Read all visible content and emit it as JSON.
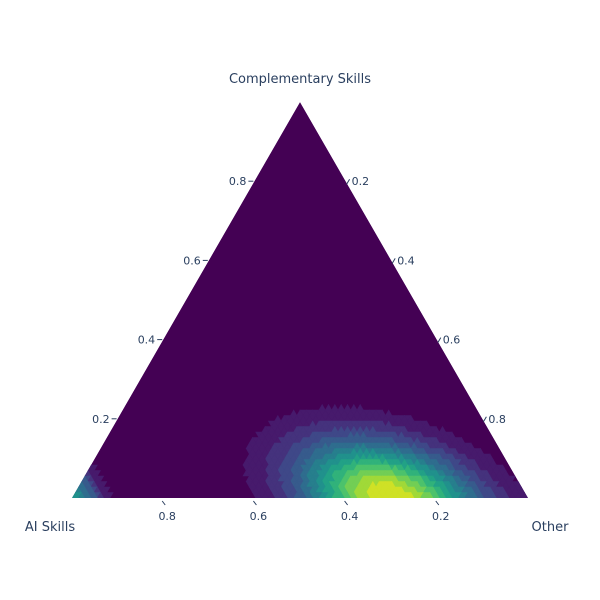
{
  "chart_data": {
    "type": "ternary-contour",
    "axes": {
      "a": {
        "title": "Complementary Skills",
        "ticks": [
          "0.8",
          "0.6",
          "0.4",
          "0.2"
        ]
      },
      "b": {
        "title": "AI Skills",
        "ticks": [
          "0.8",
          "0.6",
          "0.4",
          "0.2"
        ]
      },
      "c": {
        "title": "Other",
        "ticks": [
          "0.2",
          "0.4",
          "0.6",
          "0.8"
        ]
      }
    },
    "colorscale": "viridis",
    "contour_lines": "white",
    "levels": 14,
    "peak": {
      "a": 0.0,
      "b": 0.3,
      "c": 0.7
    },
    "secondary_peak": {
      "a": 0.0,
      "b": 1.0,
      "c": 0.0
    },
    "showscale": false
  },
  "colors": {
    "background": "#ffffff",
    "text": "#2a3f5f",
    "outline": "#ffffff"
  }
}
